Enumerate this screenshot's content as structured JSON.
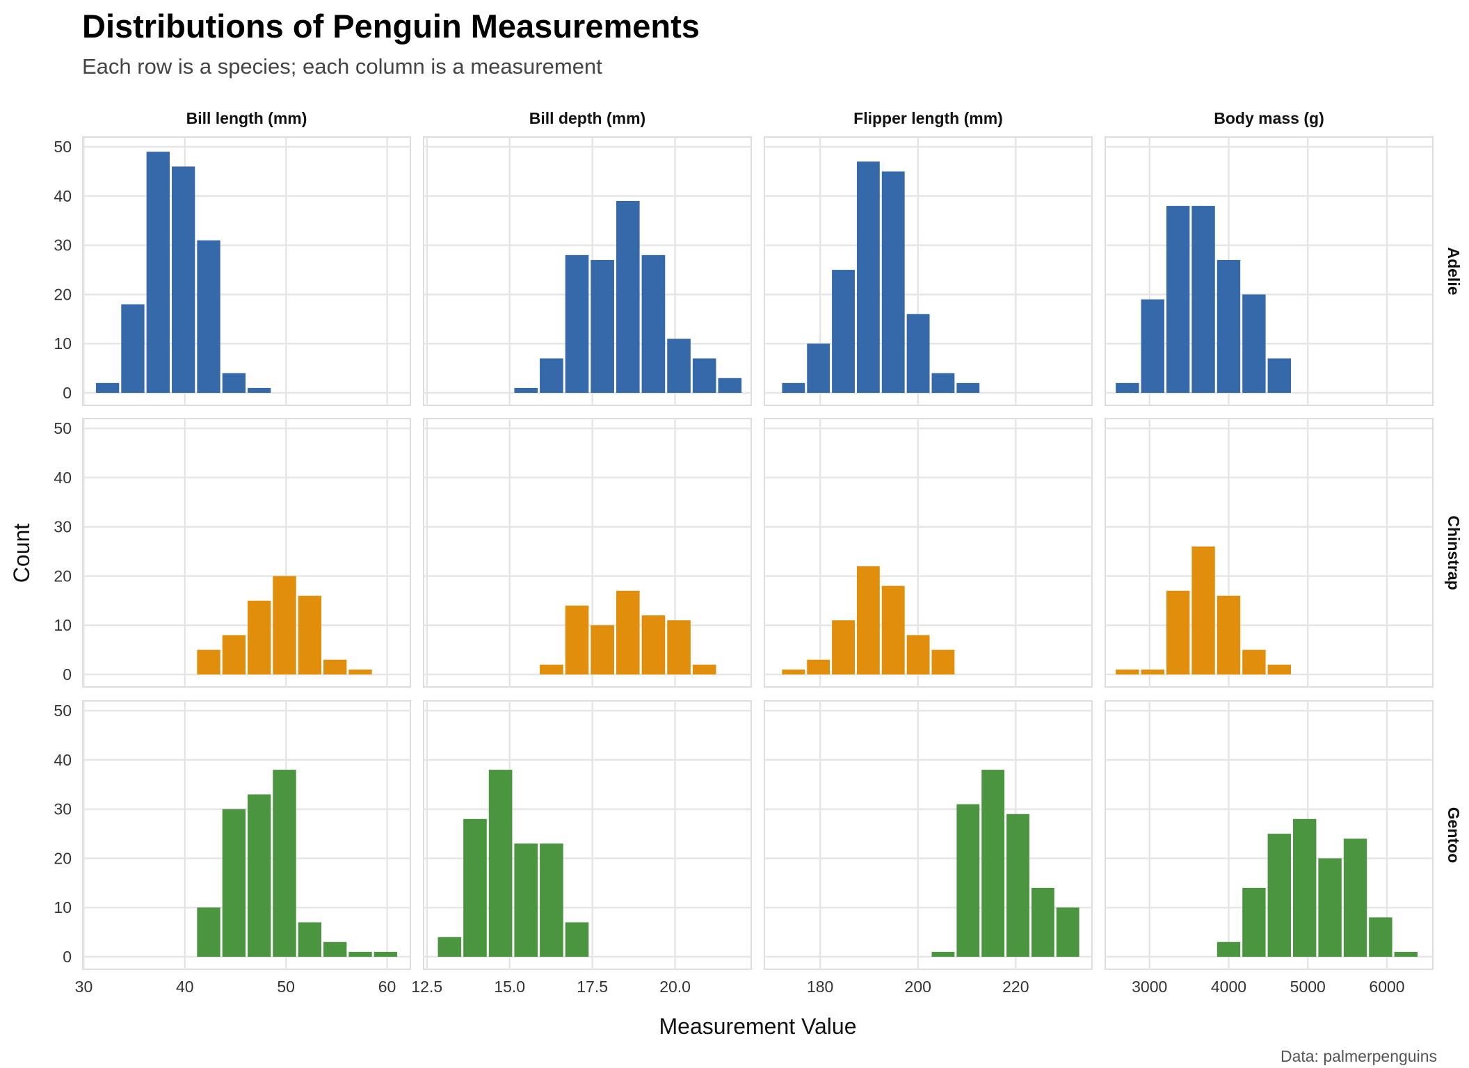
{
  "title": "Distributions of Penguin Measurements",
  "subtitle": "Each row is a species; each column is a measurement",
  "caption": "Data: palmerpenguins",
  "colors": {
    "Adelie": "#3669AA",
    "Chinstrap": "#E08E0B",
    "Gentoo": "#4B9440",
    "grid": "#E6E6E6",
    "panel_border": "#DDDDDD"
  },
  "chart_data": {
    "type": "bar",
    "subtype": "histogram facet grid",
    "xlabel": "Measurement Value",
    "ylabel": "Count",
    "ylim": [
      0,
      52
    ],
    "y_ticks": [
      0,
      10,
      20,
      30,
      40,
      50
    ],
    "grid": true,
    "legend": "none",
    "rows": [
      "Adelie",
      "Chinstrap",
      "Gentoo"
    ],
    "columns": [
      {
        "label": "Bill length (mm)",
        "xlim": [
          29.9,
          62.3
        ],
        "ticks": [
          30,
          40,
          50,
          60
        ],
        "tick_labels": [
          "30",
          "40",
          "50",
          "60"
        ],
        "bins": [
          [
            31.1,
            33.6
          ],
          [
            33.6,
            36.1
          ],
          [
            36.1,
            38.6
          ],
          [
            38.6,
            41.1
          ],
          [
            41.1,
            43.6
          ],
          [
            43.6,
            46.1
          ],
          [
            46.1,
            48.6
          ],
          [
            48.6,
            51.1
          ],
          [
            51.1,
            53.6
          ],
          [
            53.6,
            56.1
          ],
          [
            56.1,
            58.6
          ],
          [
            58.6,
            61.1
          ]
        ],
        "counts": {
          "Adelie": [
            2,
            18,
            49,
            46,
            31,
            4,
            1,
            0,
            0,
            0,
            0,
            0
          ],
          "Chinstrap": [
            0,
            0,
            0,
            0,
            5,
            8,
            15,
            20,
            16,
            3,
            1,
            0
          ],
          "Gentoo": [
            0,
            0,
            0,
            0,
            10,
            30,
            33,
            38,
            7,
            3,
            1,
            1
          ]
        }
      },
      {
        "label": "Bill depth (mm)",
        "xlim": [
          12.4,
          22.3
        ],
        "ticks": [
          12.5,
          15.0,
          17.5,
          20.0
        ],
        "tick_labels": [
          "12.5",
          "15.0",
          "17.5",
          "20.0"
        ],
        "bins": [
          [
            12.8,
            13.57
          ],
          [
            13.57,
            14.34
          ],
          [
            14.34,
            15.11
          ],
          [
            15.11,
            15.88
          ],
          [
            15.88,
            16.65
          ],
          [
            16.65,
            17.42
          ],
          [
            17.42,
            18.19
          ],
          [
            18.19,
            18.96
          ],
          [
            18.96,
            19.73
          ],
          [
            19.73,
            20.5
          ],
          [
            20.5,
            21.27
          ],
          [
            21.27,
            22.04
          ]
        ],
        "counts": {
          "Adelie": [
            0,
            0,
            0,
            1,
            7,
            28,
            27,
            39,
            28,
            11,
            7,
            3
          ],
          "Chinstrap": [
            0,
            0,
            0,
            0,
            2,
            14,
            10,
            17,
            12,
            11,
            2,
            0
          ],
          "Gentoo": [
            4,
            28,
            38,
            23,
            23,
            7,
            0,
            0,
            0,
            0,
            0,
            0
          ]
        }
      },
      {
        "label": "Flipper length (mm)",
        "xlim": [
          168.6,
          235.6
        ],
        "ticks": [
          180,
          200,
          220
        ],
        "tick_labels": [
          "180",
          "200",
          "220"
        ],
        "bins": [
          [
            172,
            177.1
          ],
          [
            177.1,
            182.2
          ],
          [
            182.2,
            187.3
          ],
          [
            187.3,
            192.4
          ],
          [
            192.4,
            197.5
          ],
          [
            197.5,
            202.6
          ],
          [
            202.6,
            207.7
          ],
          [
            207.7,
            212.8
          ],
          [
            212.8,
            217.9
          ],
          [
            217.9,
            223
          ],
          [
            223,
            228.1
          ],
          [
            228.1,
            233.2
          ]
        ],
        "counts": {
          "Adelie": [
            2,
            10,
            25,
            47,
            45,
            16,
            4,
            2,
            0,
            0,
            0,
            0
          ],
          "Chinstrap": [
            1,
            3,
            11,
            22,
            18,
            8,
            5,
            0,
            0,
            0,
            0,
            0
          ],
          "Gentoo": [
            0,
            0,
            0,
            0,
            0,
            0,
            1,
            31,
            38,
            29,
            14,
            10
          ]
        }
      },
      {
        "label": "Body mass (g)",
        "xlim": [
          2440,
          6580
        ],
        "ticks": [
          3000,
          4000,
          5000,
          6000
        ],
        "tick_labels": [
          "3000",
          "4000",
          "5000",
          "6000"
        ],
        "bins": [
          [
            2560,
            2880
          ],
          [
            2880,
            3200
          ],
          [
            3200,
            3520
          ],
          [
            3520,
            3840
          ],
          [
            3840,
            4160
          ],
          [
            4160,
            4480
          ],
          [
            4480,
            4800
          ],
          [
            4800,
            5120
          ],
          [
            5120,
            5440
          ],
          [
            5440,
            5760
          ],
          [
            5760,
            6080
          ],
          [
            6080,
            6400
          ]
        ],
        "counts": {
          "Adelie": [
            2,
            19,
            38,
            38,
            27,
            20,
            7,
            0,
            0,
            0,
            0,
            0
          ],
          "Chinstrap": [
            1,
            1,
            17,
            26,
            16,
            5,
            2,
            0,
            0,
            0,
            0,
            0
          ],
          "Gentoo": [
            0,
            0,
            0,
            0,
            3,
            14,
            25,
            28,
            20,
            24,
            8,
            1
          ]
        }
      }
    ]
  }
}
